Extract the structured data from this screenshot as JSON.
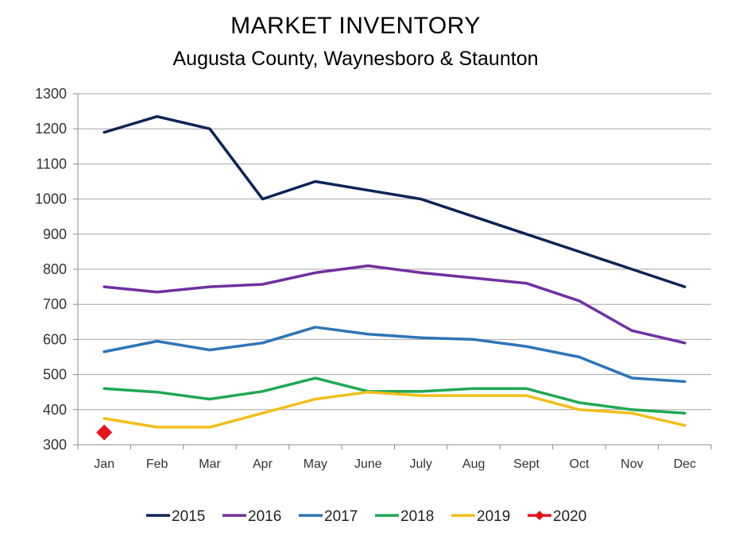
{
  "chart_data": {
    "type": "line",
    "title": "MARKET INVENTORY",
    "subtitle": "Augusta County, Waynesboro & Staunton",
    "xlabel": "",
    "ylabel": "",
    "ylim": [
      300,
      1300
    ],
    "yticks": [
      300,
      400,
      500,
      600,
      700,
      800,
      900,
      1000,
      1100,
      1200,
      1300
    ],
    "grid": true,
    "legend_position": "bottom",
    "categories": [
      "Jan",
      "Feb",
      "Mar",
      "Apr",
      "May",
      "June",
      "July",
      "Aug",
      "Sept",
      "Oct",
      "Nov",
      "Dec"
    ],
    "series": [
      {
        "name": "2015",
        "color": "#0d2456",
        "values": [
          1190,
          1235,
          1200,
          1000,
          1050,
          1025,
          1000,
          950,
          900,
          850,
          800,
          750
        ]
      },
      {
        "name": "2016",
        "color": "#7030a0",
        "values": [
          750,
          735,
          750,
          757,
          790,
          810,
          790,
          775,
          760,
          710,
          625,
          590
        ]
      },
      {
        "name": "2017",
        "color": "#2e75b6",
        "values": [
          565,
          595,
          570,
          590,
          635,
          615,
          605,
          600,
          580,
          550,
          490,
          480
        ]
      },
      {
        "name": "2018",
        "color": "#1fa855",
        "values": [
          460,
          450,
          430,
          452,
          490,
          452,
          452,
          460,
          460,
          420,
          400,
          390
        ]
      },
      {
        "name": "2019",
        "color": "#f2bf1b",
        "values": [
          375,
          350,
          350,
          390,
          430,
          450,
          440,
          440,
          440,
          400,
          390,
          355
        ]
      },
      {
        "name": "2020",
        "color": "#e8141b",
        "marker": "diamond",
        "values": [
          335,
          null,
          null,
          null,
          null,
          null,
          null,
          null,
          null,
          null,
          null,
          null
        ]
      }
    ]
  }
}
